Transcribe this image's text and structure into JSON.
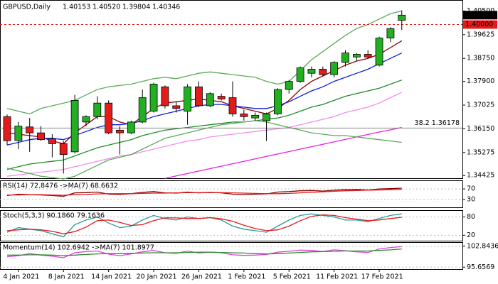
{
  "chart_data": [
    {
      "type": "candlestick",
      "title": "GBPUSD,Daily",
      "header_values": [
        "1.40153",
        "1.40520",
        "1.39804",
        "1.40346"
      ],
      "categories": [
        null,
        "4 Jan 2021",
        null,
        null,
        null,
        "8 Jan 2021",
        null,
        null,
        null,
        "14 Jan 2021",
        null,
        null,
        null,
        "20 Jan 2021",
        null,
        null,
        null,
        "26 Jan 2021",
        null,
        null,
        null,
        "1 Feb 2021",
        null,
        null,
        null,
        "5 Feb 2021",
        null,
        null,
        null,
        "11 Feb 2021",
        null,
        null,
        null,
        "17 Feb 2021",
        null,
        null
      ],
      "open": [
        1.366,
        1.3572,
        1.3622,
        1.36,
        1.3578,
        1.356,
        1.353,
        1.364,
        1.366,
        1.371,
        1.361,
        1.36,
        1.364,
        1.368,
        1.377,
        1.37,
        1.368,
        1.377,
        1.37,
        1.3735,
        1.373,
        1.367,
        1.3655,
        1.3645,
        1.367,
        1.376,
        1.379,
        1.382,
        1.3835,
        1.3815,
        1.386,
        1.388,
        1.389,
        1.385,
        1.395,
        1.40153
      ],
      "high": [
        1.3668,
        1.364,
        1.3655,
        1.3625,
        1.3595,
        1.357,
        1.374,
        1.3665,
        1.3735,
        1.372,
        1.3625,
        1.3645,
        1.376,
        1.3785,
        1.3775,
        1.3715,
        1.378,
        1.379,
        1.375,
        1.3745,
        1.379,
        1.3685,
        1.3675,
        1.3675,
        1.3765,
        1.3795,
        1.3845,
        1.3845,
        1.3845,
        1.3865,
        1.3905,
        1.3895,
        1.3905,
        1.3955,
        1.399,
        1.4052
      ],
      "low": [
        1.3555,
        1.354,
        1.353,
        1.357,
        1.351,
        1.345,
        1.3525,
        1.3625,
        1.365,
        1.3595,
        1.352,
        1.3595,
        1.3635,
        1.3675,
        1.369,
        1.3675,
        1.363,
        1.3695,
        1.3695,
        1.372,
        1.366,
        1.3645,
        1.3645,
        1.357,
        1.3665,
        1.3745,
        1.3785,
        1.3805,
        1.381,
        1.3805,
        1.3845,
        1.3865,
        1.3875,
        1.3845,
        1.3935,
        1.39804
      ],
      "close": [
        1.3571,
        1.3625,
        1.36,
        1.3575,
        1.356,
        1.352,
        1.372,
        1.366,
        1.371,
        1.36,
        1.36,
        1.364,
        1.373,
        1.378,
        1.37,
        1.369,
        1.377,
        1.37,
        1.3745,
        1.3725,
        1.367,
        1.366,
        1.3665,
        1.367,
        1.376,
        1.379,
        1.384,
        1.3835,
        1.3815,
        1.386,
        1.3895,
        1.389,
        1.388,
        1.395,
        1.3985,
        1.40346
      ],
      "up_color": "#22b022",
      "down_color": "#e41b1b",
      "series": [
        {
          "color": "#8b0000",
          "values": [
            1.36,
            1.3595,
            1.359,
            1.3585,
            1.357,
            1.356,
            1.36,
            1.363,
            1.366,
            1.366,
            1.364,
            1.363,
            1.366,
            1.369,
            1.371,
            1.3715,
            1.372,
            1.3725,
            1.372,
            1.3715,
            1.37,
            1.369,
            1.368,
            1.367,
            1.369,
            1.372,
            1.376,
            1.379,
            1.381,
            1.383,
            1.385,
            1.3865,
            1.3875,
            1.389,
            1.3915,
            1.394
          ]
        },
        {
          "color": "#0a1ee6",
          "values": [
            1.3555,
            1.3565,
            1.3575,
            1.358,
            1.358,
            1.3575,
            1.359,
            1.3605,
            1.362,
            1.363,
            1.363,
            1.3635,
            1.3645,
            1.366,
            1.367,
            1.368,
            1.369,
            1.37,
            1.3705,
            1.3705,
            1.37,
            1.3695,
            1.369,
            1.369,
            1.37,
            1.3715,
            1.3735,
            1.3755,
            1.377,
            1.379,
            1.3805,
            1.382,
            1.3835,
            1.3855,
            1.3875,
            1.3895
          ]
        },
        {
          "color": "#1e8c28",
          "values": [
            1.3465,
            1.3475,
            1.3485,
            1.349,
            1.3495,
            1.35,
            1.3515,
            1.353,
            1.3545,
            1.3555,
            1.3565,
            1.3575,
            1.359,
            1.36,
            1.361,
            1.3615,
            1.362,
            1.3625,
            1.363,
            1.3635,
            1.364,
            1.364,
            1.3645,
            1.365,
            1.3655,
            1.3665,
            1.368,
            1.3695,
            1.3705,
            1.372,
            1.3735,
            1.3745,
            1.3755,
            1.3765,
            1.378,
            1.3795
          ]
        },
        {
          "color": "#f08cf0",
          "values": [
            1.344,
            1.3445,
            1.345,
            1.3455,
            1.346,
            1.3465,
            1.3475,
            1.3485,
            1.3495,
            1.3505,
            1.3515,
            1.352,
            1.353,
            1.354,
            1.355,
            1.356,
            1.357,
            1.3575,
            1.3585,
            1.359,
            1.3595,
            1.36,
            1.3605,
            1.361,
            1.3615,
            1.362,
            1.363,
            1.364,
            1.365,
            1.366,
            1.3675,
            1.3685,
            1.3695,
            1.371,
            1.373,
            1.375
          ]
        },
        {
          "color": "#e61ee6",
          "values": [
            null,
            null,
            null,
            null,
            null,
            null,
            null,
            null,
            null,
            null,
            null,
            null,
            null,
            null,
            1.3432,
            1.3441,
            1.345,
            1.3459,
            1.3468,
            1.3477,
            1.3486,
            1.3495,
            1.3504,
            1.3513,
            1.3522,
            1.3531,
            1.354,
            1.3549,
            1.3558,
            1.3567,
            1.3576,
            1.3585,
            1.3594,
            1.3603,
            1.3611,
            1.362
          ]
        },
        {
          "color": "#5aaa5a",
          "values": [
            1.369,
            1.368,
            1.367,
            1.369,
            1.37,
            1.371,
            1.372,
            1.374,
            1.376,
            1.377,
            1.3775,
            1.378,
            1.379,
            1.38,
            1.3805,
            1.38,
            1.381,
            1.382,
            1.3825,
            1.382,
            1.3815,
            1.381,
            1.3805,
            1.379,
            1.378,
            1.379,
            1.383,
            1.387,
            1.39,
            1.393,
            1.396,
            1.3985,
            1.4,
            1.402,
            1.404,
            1.405
          ]
        },
        {
          "color": "#5aaa5a",
          "values": [
            1.347,
            1.346,
            1.345,
            1.344,
            1.3435,
            1.343,
            1.344,
            1.346,
            1.348,
            1.35,
            1.351,
            1.352,
            1.354,
            1.356,
            1.358,
            1.359,
            1.36,
            1.361,
            1.362,
            1.363,
            1.3635,
            1.364,
            1.3645,
            1.364,
            1.363,
            1.362,
            1.361,
            1.36,
            1.3595,
            1.359,
            1.359,
            1.3585,
            1.358,
            1.3575,
            1.357,
            1.3565
          ]
        }
      ],
      "ylim": [
        1.343,
        1.408
      ],
      "yticks": [
        {
          "value": 1.405,
          "label": "1.40500"
        },
        {
          "value": 1.39625,
          "label": "1.39625"
        },
        {
          "value": 1.3875,
          "label": "1.38750"
        },
        {
          "value": 1.379,
          "label": "1.37900"
        },
        {
          "value": 1.37025,
          "label": "1.37025"
        },
        {
          "value": 1.3615,
          "label": "1.36150"
        },
        {
          "value": 1.35275,
          "label": "1.35275"
        },
        {
          "value": 1.34425,
          "label": "1.34425"
        }
      ],
      "level": {
        "value": 1.4,
        "label": "1.40000",
        "color": "#e41b1b"
      },
      "fibo": {
        "value": 1.36178,
        "label": "38.2 1.36178",
        "color": "#888888"
      },
      "last": {
        "value": 1.40346,
        "label": "1.40346"
      }
    },
    {
      "type": "line",
      "title": "RSI(14) 72.8476 ->MA(7) 68.6632",
      "ylim": [
        0,
        100
      ],
      "yticks": [
        70,
        30
      ],
      "series": [
        {
          "color": "#8b0000",
          "values": [
            45,
            50,
            48,
            47,
            45,
            42,
            55,
            56,
            58,
            50,
            49,
            52,
            57,
            60,
            55,
            54,
            58,
            55,
            57,
            55,
            50,
            49,
            50,
            51,
            58,
            60,
            63,
            64,
            62,
            65,
            67,
            68,
            66,
            70,
            71,
            72.8476
          ]
        },
        {
          "color": "#e41b1b",
          "values": [
            47,
            47,
            48,
            48,
            47,
            46,
            48,
            49,
            51,
            52,
            52,
            52,
            53,
            54,
            54,
            55,
            56,
            56,
            56,
            56,
            55,
            54,
            53,
            52,
            52,
            53,
            55,
            57,
            59,
            61,
            63,
            64,
            65,
            66,
            67,
            68.6632
          ]
        }
      ]
    },
    {
      "type": "line",
      "title": "Stoch(5,3,3) 90.1860 79.1636",
      "ylim": [
        0,
        100
      ],
      "yticks": [
        80,
        20
      ],
      "series": [
        {
          "color": "#2b9a9a",
          "values": [
            30,
            45,
            40,
            35,
            25,
            15,
            55,
            70,
            80,
            60,
            45,
            50,
            70,
            85,
            75,
            70,
            80,
            75,
            78,
            70,
            50,
            40,
            35,
            30,
            50,
            70,
            85,
            90,
            85,
            80,
            70,
            70,
            65,
            75,
            85,
            90.186
          ]
        },
        {
          "color": "#e41b1b",
          "values": [
            35,
            38,
            40,
            38,
            33,
            25,
            32,
            47,
            68,
            70,
            62,
            52,
            55,
            68,
            77,
            77,
            75,
            75,
            78,
            74,
            66,
            53,
            42,
            35,
            38,
            50,
            68,
            82,
            87,
            85,
            78,
            73,
            68,
            70,
            75,
            79.1636
          ]
        }
      ]
    },
    {
      "type": "line",
      "title": "Momentum(14) 102.6942 ->MA(7) 101.8977",
      "ylim": [
        95,
        104
      ],
      "yticks": [
        102.8436,
        95.6569
      ],
      "series": [
        {
          "color": "#e040e0",
          "values": [
            99.2,
            99.6,
            100.3,
            99.8,
            99.4,
            98.9,
            100.6,
            101,
            101.2,
            100.1,
            99.6,
            100.2,
            100.9,
            101.4,
            100.6,
            100.4,
            101.2,
            100.5,
            100.8,
            100.6,
            99.9,
            99.7,
            99.8,
            100,
            100.8,
            101.1,
            101.5,
            101.4,
            101,
            101.6,
            101.3,
            100.9,
            100.7,
            101.9,
            102.4,
            102.6942
          ]
        },
        {
          "color": "#2e8b2e",
          "values": [
            99.8,
            99.8,
            99.9,
            99.9,
            99.8,
            99.6,
            99.8,
            100,
            100.2,
            100.3,
            100.3,
            100.4,
            100.5,
            100.6,
            100.6,
            100.6,
            100.7,
            100.8,
            100.8,
            100.7,
            100.6,
            100.5,
            100.3,
            100.2,
            100.3,
            100.5,
            100.7,
            100.9,
            101,
            101.1,
            101.2,
            101.2,
            101.2,
            101.4,
            101.6,
            101.8977
          ]
        }
      ]
    }
  ]
}
